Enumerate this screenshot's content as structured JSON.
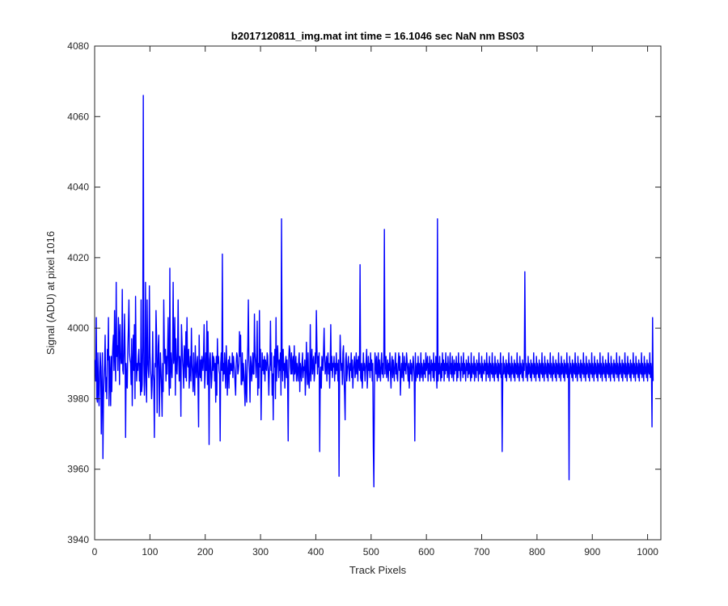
{
  "chart_data": {
    "type": "line",
    "title": "b2017120811_img.mat int time = 16.1046 sec  NaN nm BS03",
    "xlabel": "Track Pixels",
    "ylabel": "Signal (ADU) at pixel 1016",
    "xlim": [
      0,
      1024
    ],
    "ylim": [
      3940,
      4080
    ],
    "xticks": [
      0,
      100,
      200,
      300,
      400,
      500,
      600,
      700,
      800,
      900,
      1000
    ],
    "yticks": [
      3940,
      3960,
      3980,
      4000,
      4020,
      4040,
      4060,
      4080
    ],
    "grid": false,
    "series_color": "#0000ff",
    "series": [
      {
        "x_start": 1,
        "x_step": 1,
        "values": [
          3991,
          3985,
          4003,
          3980,
          3979,
          3993,
          3982,
          3978,
          3987,
          3993,
          3989,
          3970,
          3982,
          3993,
          3963,
          3980,
          3986,
          3990,
          3998,
          3982,
          3986,
          3980,
          3994,
          3991,
          4003,
          3978,
          3992,
          3987,
          3978,
          3992,
          3982,
          3991,
          3995,
          3998,
          3988,
          4005,
          3992,
          3985,
          4013,
          3992,
          3995,
          3988,
          4003,
          3998,
          3984,
          4001,
          3993,
          3990,
          3990,
          4011,
          3988,
          3987,
          3993,
          4004,
          3994,
          3969,
          3990,
          3985,
          3983,
          3994,
          4000,
          4008,
          3993,
          3991,
          3990,
          3984,
          3997,
          3978,
          3989,
          3998,
          3988,
          4001,
          3980,
          4009,
          3992,
          3985,
          3990,
          3988,
          3992,
          3994,
          3985,
          3990,
          3981,
          4008,
          3982,
          3984,
          3995,
          4066,
          3990,
          3981,
          3988,
          4013,
          3985,
          3979,
          4008,
          3991,
          3988,
          3986,
          4012,
          3993,
          3988,
          3986,
          3980,
          3984,
          3999,
          3987,
          3985,
          3969,
          3990,
          3989,
          4005,
          3998,
          3976,
          3988,
          3995,
          3998,
          3975,
          3984,
          3993,
          3988,
          3983,
          3975,
          3990,
          3982,
          4008,
          3995,
          3990,
          3994,
          3985,
          3992,
          3987,
          3994,
          4003,
          3987,
          3981,
          4017,
          3983,
          3993,
          3989,
          3986,
          3994,
          4013,
          3990,
          3992,
          4003,
          3981,
          3997,
          3989,
          3987,
          3993,
          4008,
          3991,
          3985,
          3992,
          3990,
          3975,
          4001,
          3996,
          3991,
          3988,
          3983,
          3995,
          3993,
          3986,
          3999,
          3985,
          4003,
          3990,
          3989,
          3994,
          3983,
          3988,
          3992,
          3985,
          4000,
          3990,
          3987,
          3982,
          3993,
          3985,
          3981,
          3995,
          3989,
          3986,
          3990,
          3992,
          3983,
          3972,
          3998,
          3988,
          3986,
          3991,
          3985,
          3992,
          3990,
          3988,
          3993,
          4001,
          3983,
          3987,
          3993,
          3988,
          4002,
          3984,
          3999,
          3988,
          3967,
          3991,
          3993,
          3988,
          3983,
          3986,
          3993,
          3988,
          3992,
          3991,
          3985,
          3990,
          3979,
          3992,
          3981,
          3997,
          3990,
          3992,
          3988,
          3987,
          3968,
          3990,
          3993,
          3988,
          4021,
          3985,
          3990,
          3987,
          3993,
          3988,
          3983,
          3995,
          3990,
          3981,
          3988,
          3991,
          3983,
          3992,
          3987,
          3990,
          3988,
          3988,
          3993,
          3986,
          3992,
          3990,
          3988,
          3984,
          3981,
          3990,
          3993,
          3992,
          3987,
          3988,
          3990,
          3999,
          3992,
          3998,
          3984,
          3984,
          3993,
          3985,
          3990,
          3987,
          3983,
          3978,
          3991,
          3983,
          3979,
          3990,
          3995,
          4008,
          3991,
          3987,
          3979,
          3992,
          3990,
          3985,
          3988,
          3993,
          3987,
          3987,
          4004,
          3993,
          3990,
          3986,
          3992,
          4002,
          3981,
          3990,
          3983,
          4005,
          3989,
          3994,
          3974,
          3985,
          3993,
          3988,
          3991,
          3987,
          3992,
          3985,
          3991,
          3989,
          3988,
          3993,
          3992,
          3987,
          3981,
          3988,
          3990,
          4002,
          3988,
          3993,
          3981,
          3987,
          3974,
          3992,
          3989,
          3994,
          3980,
          4003,
          3985,
          3992,
          3995,
          3990,
          3986,
          3991,
          3988,
          3993,
          3981,
          4031,
          3990,
          3985,
          3994,
          3988,
          3990,
          3983,
          3990,
          3992,
          3986,
          3991,
          3985,
          3968,
          3991,
          3995,
          3994,
          3989,
          3987,
          3993,
          3987,
          3990,
          3992,
          3985,
          3995,
          3987,
          3988,
          3992,
          3985,
          3990,
          3988,
          3985,
          3991,
          3993,
          3982,
          3990,
          3988,
          3985,
          3990,
          3993,
          3986,
          3989,
          3988,
          3991,
          3981,
          3987,
          3996,
          3988,
          3984,
          3993,
          3985,
          3983,
          3988,
          4001,
          3985,
          3990,
          3994,
          3987,
          3990,
          3992,
          3985,
          3987,
          3993,
          3990,
          4005,
          3995,
          3987,
          3992,
          3989,
          3993,
          3965,
          3986,
          3989,
          3983,
          3992,
          3990,
          3988,
          3994,
          4000,
          3991,
          3987,
          3989,
          3992,
          3985,
          3991,
          3993,
          3987,
          3990,
          3983,
          3989,
          4001,
          3988,
          3992,
          3986,
          3990,
          3989,
          3992,
          3985,
          3990,
          3987,
          3993,
          3988,
          3990,
          3985,
          3991,
          3958,
          3986,
          3998,
          3992,
          3988,
          3990,
          3984,
          3993,
          3995,
          3986,
          3981,
          3974,
          3991,
          3993,
          3985,
          3988,
          3990,
          3992,
          3987,
          3985,
          3990,
          3988,
          3993,
          3986,
          3991,
          3983,
          3988,
          3990,
          3992,
          3986,
          3988,
          3993,
          3987,
          3991,
          3985,
          3992,
          3990,
          3988,
          4018,
          3986,
          3985,
          3990,
          3983,
          3987,
          3993,
          3988,
          3990,
          3985,
          3988,
          3991,
          3994,
          3983,
          3987,
          3992,
          3988,
          3990,
          3986,
          3993,
          3988,
          3991,
          3985,
          3990,
          3966,
          3955,
          3983,
          3993,
          3990,
          3987,
          3992,
          3985,
          3988,
          3993,
          3986,
          3991,
          3988,
          3985,
          3990,
          3993,
          3987,
          3990,
          3986,
          3993,
          4028,
          3987,
          3990,
          3992,
          3986,
          3988,
          3991,
          3985,
          3990,
          3988,
          3993,
          3987,
          3983,
          3990,
          3992,
          3986,
          3991,
          3988,
          3985,
          3990,
          3993,
          3987,
          3990,
          3986,
          3985,
          3990,
          3993,
          3988,
          3992,
          3981,
          3987,
          3990,
          3986,
          3993,
          3988,
          3985,
          3992,
          3988,
          3990,
          3987,
          3993,
          3991,
          3988,
          3985,
          3990,
          3983,
          3988,
          3991,
          3987,
          3990,
          3985,
          3988,
          3992,
          3990,
          3986,
          3968,
          3993,
          3985,
          3988,
          3990,
          3986,
          3992,
          3987,
          3990,
          3985,
          3988,
          3993,
          3986,
          3990,
          3988,
          3985,
          3991,
          3987,
          3990,
          3986,
          3993,
          3988,
          3990,
          3992,
          3985,
          3990,
          3987,
          3992,
          3988,
          3985,
          3991,
          3988,
          3990,
          3986,
          3993,
          3985,
          3990,
          3988,
          3992,
          3987,
          3983,
          4031,
          3985,
          3990,
          3987,
          3992,
          3988,
          3985,
          3990,
          3986,
          3993,
          3988,
          3991,
          3985,
          3990,
          3987,
          3993,
          3988,
          3990,
          3986,
          3992,
          3988,
          3985,
          3990,
          3993,
          3987,
          3990,
          3986,
          3992,
          3988,
          3985,
          3991,
          3987,
          3990,
          3988,
          3992,
          3985,
          3990,
          3986,
          3993,
          3988,
          3990,
          3987,
          3985,
          3992,
          3988,
          3990,
          3986,
          3993,
          3987,
          3990,
          3988,
          3985,
          3991,
          3988,
          3990,
          3986,
          3992,
          3987,
          3990,
          3988,
          3985,
          3993,
          3986,
          3990,
          3988,
          3987,
          3992,
          3985,
          3990,
          3988,
          3986,
          3991,
          3988,
          3990,
          3985,
          3993,
          3987,
          3990,
          3988,
          3986,
          3992,
          3985,
          3990,
          3988,
          3987,
          3991,
          3988,
          3990,
          3985,
          3993,
          3987,
          3990,
          3986,
          3988,
          3992,
          3985,
          3990,
          3988,
          3987,
          3993,
          3986,
          3990,
          3988,
          3985,
          3992,
          3987,
          3990,
          3988,
          3986,
          3991,
          3985,
          3990,
          3988,
          3987,
          3993,
          3986,
          3990,
          3965,
          3985,
          3992,
          3987,
          3990,
          3988,
          3986,
          3991,
          3985,
          3990,
          3988,
          3987,
          3993,
          3986,
          3990,
          3988,
          3985,
          3992,
          3987,
          3990,
          3988,
          3986,
          3991,
          3985,
          3990,
          3988,
          3987,
          3993,
          3986,
          3990,
          3988,
          3985,
          3992,
          3987,
          3990,
          3988,
          3986,
          3991,
          3985,
          3990,
          3988,
          4016,
          3993,
          3986,
          3990,
          3988,
          3985,
          3992,
          3987,
          3990,
          3988,
          3986,
          3991,
          3985,
          3990,
          3988,
          3987,
          3993,
          3986,
          3990,
          3988,
          3985,
          3992,
          3987,
          3990,
          3988,
          3986,
          3991,
          3985,
          3990,
          3988,
          3987,
          3993,
          3986,
          3990,
          3988,
          3985,
          3992,
          3987,
          3990,
          3988,
          3986,
          3991,
          3985,
          3990,
          3988,
          3987,
          3993,
          3986,
          3990,
          3988,
          3985,
          3992,
          3987,
          3990,
          3988,
          3986,
          3991,
          3985,
          3990,
          3988,
          3987,
          3993,
          3986,
          3990,
          3988,
          3985,
          3992,
          3987,
          3990,
          3988,
          3986,
          3991,
          3985,
          3990,
          3988,
          3987,
          3993,
          3986,
          3990,
          3988,
          3957,
          3992,
          3987,
          3990,
          3988,
          3986,
          3991,
          3985,
          3990,
          3988,
          3987,
          3993,
          3986,
          3990,
          3988,
          3985,
          3992,
          3987,
          3990,
          3988,
          3986,
          3991,
          3985,
          3990,
          3988,
          3987,
          3993,
          3986,
          3990,
          3988,
          3985,
          3992,
          3987,
          3990,
          3988,
          3986,
          3991,
          3985,
          3990,
          3988,
          3987,
          3993,
          3986,
          3990,
          3988,
          3985,
          3992,
          3987,
          3990,
          3988,
          3986,
          3991,
          3985,
          3990,
          3988,
          3987,
          3993,
          3986,
          3990,
          3988,
          3985,
          3992,
          3987,
          3990,
          3988,
          3986,
          3991,
          3985,
          3990,
          3988,
          3987,
          3993,
          3986,
          3990,
          3988,
          3985,
          3992,
          3987,
          3990,
          3988,
          3986,
          3991,
          3985,
          3990,
          3988,
          3987,
          3993,
          3986,
          3990,
          3988,
          3985,
          3992,
          3987,
          3990,
          3988,
          3986,
          3991,
          3985,
          3990,
          3988,
          3987,
          3993,
          3986,
          3990,
          3988,
          3985,
          3992,
          3987,
          3990,
          3988,
          3986,
          3991,
          3985,
          3990,
          3988,
          3987,
          3993,
          3986,
          3990,
          3988,
          3985,
          3992,
          3987,
          3990,
          3988,
          3986,
          3991,
          3985,
          3990,
          3988,
          3987,
          3993,
          3986,
          3990,
          3988,
          3985,
          3992,
          3987,
          3990,
          3988,
          3986,
          3991,
          3985,
          3990,
          3988,
          3987,
          3993,
          3986,
          3990,
          3988,
          3972,
          4003,
          3985
        ]
      }
    ]
  }
}
